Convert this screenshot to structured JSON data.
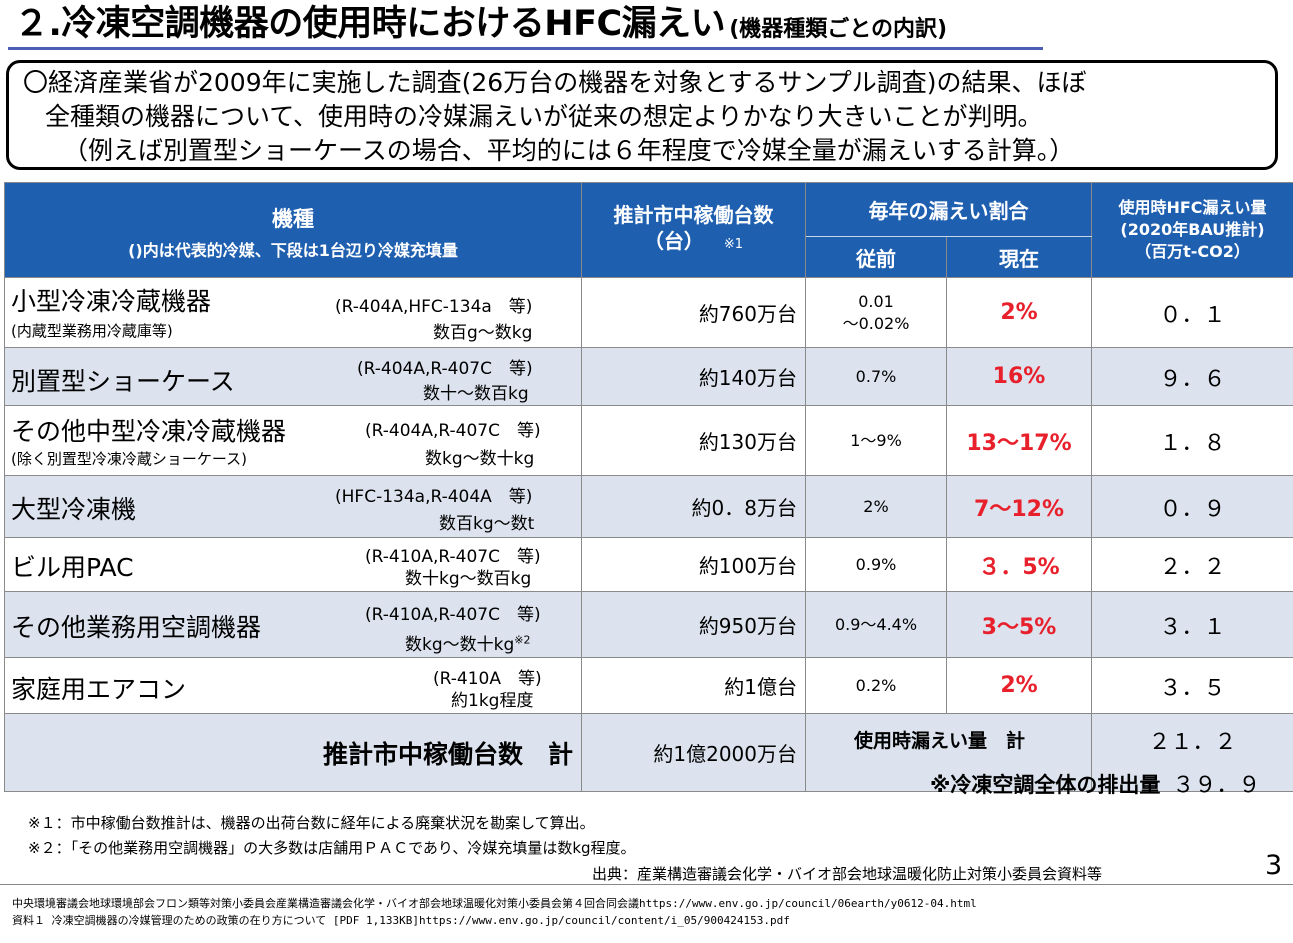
{
  "title": {
    "main": "２.冷凍空調機器の使用時におけるHFC漏えい",
    "sub": "(機器種類ごとの内訳)"
  },
  "summary": {
    "line1": "〇経済産業省が2009年に実施した調査(26万台の機器を対象とするサンプル調査)の結果、ほぼ",
    "line2": "全種類の機器について、使用時の冷媒漏えいが従来の想定よりかなり大きいことが判明。",
    "line3": "（例えば別置型ショーケースの場合、平均的には６年程度で冷媒全量が漏えいする計算。）"
  },
  "table": {
    "headers": {
      "type_main": "機種",
      "type_sub": "()内は代表的冷媒、下段は1台辺り冷媒充填量",
      "units_main": "推計市中稼働台数",
      "units_unit": "（台）",
      "units_note": "※1",
      "rate_main": "毎年の漏えい割合",
      "rate_old": "従前",
      "rate_now": "現在",
      "hfc_line1": "使用時HFC漏えい量",
      "hfc_line2": "(2020年BAU推計)",
      "hfc_line3": "（百万t-CO2）"
    },
    "rows": [
      {
        "name": "小型冷凍冷蔵機器",
        "note": "(内蔵型業務用冷蔵庫等)",
        "refrigerant": "(R-404A,HFC-134a　等)",
        "charge": "数百g～数kg",
        "units": "約760万台",
        "old": "0.01\n～0.02%",
        "now": "2%",
        "hfc": "０．１"
      },
      {
        "name": "別置型ショーケース",
        "note": "",
        "refrigerant": "(R-404A,R-407C　等)",
        "charge": "数十～数百kg",
        "units": "約140万台",
        "old": "0.7%",
        "now": "16%",
        "hfc": "９．６"
      },
      {
        "name": "その他中型冷凍冷蔵機器",
        "note": "(除く別置型冷凍冷蔵ショーケース)",
        "refrigerant": "(R-404A,R-407C　等)",
        "charge": "数kg～数十kg",
        "units": "約130万台",
        "old": "1～9%",
        "now": "13～17%",
        "hfc": "１．８"
      },
      {
        "name": "大型冷凍機",
        "note": "",
        "refrigerant": "(HFC-134a,R-404A　等)",
        "charge": "数百kg～数t",
        "units": "約0．8万台",
        "old": "2%",
        "now": "7～12%",
        "hfc": "０．９"
      },
      {
        "name": "ビル用PAC",
        "note": "",
        "refrigerant": "(R-410A,R-407C　等)",
        "charge": "数十kg～数百kg",
        "units": "約100万台",
        "old": "0.9%",
        "now": "３．5%",
        "hfc": "２．２"
      },
      {
        "name": "その他業務用空調機器",
        "note": "",
        "refrigerant": "(R-410A,R-407C　等)",
        "charge": "数kg～数十kg",
        "charge_sup": "※2",
        "units": "約950万台",
        "old": "0.9～4.4%",
        "now": "3～5%",
        "hfc": "３．１"
      },
      {
        "name": "家庭用エアコン",
        "note": "",
        "refrigerant": "(R-410A　等)",
        "charge": "約1kg程度",
        "units": "約1億台",
        "old": "0.2%",
        "now": "2%",
        "hfc": "３．５"
      }
    ],
    "total": {
      "label": "推計市中稼働台数　計",
      "units": "約1億2000万台",
      "leak_label": "使用時漏えい量　計",
      "leak_value": "２１．２",
      "overall_label": "※冷凍空調全体の排出量",
      "overall_value": "３９．９"
    }
  },
  "notes": {
    "n1": "※１：市中稼働台数推計は、機器の出荷台数に経年による廃棄状況を勘案して算出。",
    "n2": "※２：「その他業務用空調機器」の大多数は店舗用ＰＡＣであり、冷媒充填量は数kg程度。",
    "source": "出典：産業構造審議会化学・バイオ部会地球温暖化防止対策小委員会資料等",
    "page": "3"
  },
  "footer": {
    "line1": "中央環境審議会地球環境部会フロン類等対策小委員会産業構造審議会化学・バイオ部会地球温暖化対策小委員会第４回合同会議https://www.env.go.jp/council/06earth/y0612-04.html",
    "line2": "資料１ 冷凍空調機器の冷媒管理のための政策の在り方について [PDF 1,133KB]https://www.env.go.jp/council/content/i_05/900424153.pdf"
  }
}
